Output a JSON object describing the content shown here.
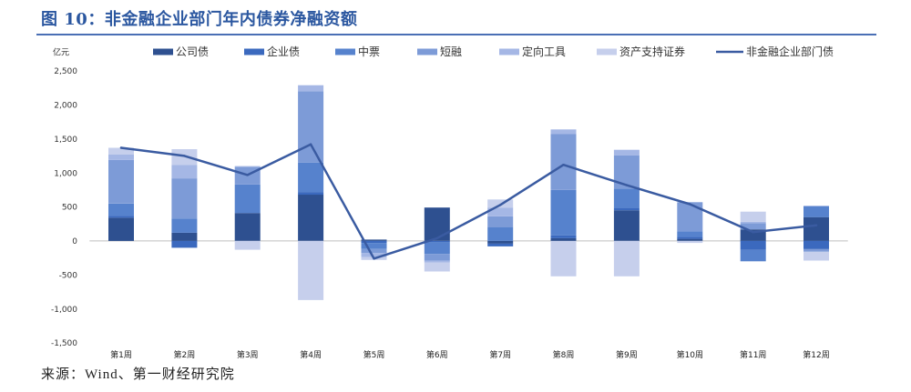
{
  "chart_data": {
    "type": "bar",
    "stacked": true,
    "title": "图 10：非金融企业部门年内债券净融资额",
    "xlabel": "",
    "ylabel": "亿元",
    "ylim": [
      -1500,
      2500
    ],
    "yticks": [
      2500,
      2000,
      1500,
      1000,
      500,
      0,
      -500,
      -1000,
      -1500
    ],
    "ytick_labels": [
      "2,500",
      "2,000",
      "1,500",
      "1,000",
      "500",
      "0",
      "-500",
      "-1,000",
      "-1,500"
    ],
    "grid": false,
    "legend_position": "top",
    "categories": [
      "第1周",
      "第2周",
      "第3周",
      "第4周",
      "第5周",
      "第6周",
      "第7周",
      "第8周",
      "第9周",
      "第10周",
      "第11周",
      "第12周"
    ],
    "series": [
      {
        "name": "公司债",
        "type": "bar",
        "color": "#2e5090",
        "values": [
          340,
          120,
          410,
          680,
          20,
          490,
          -40,
          40,
          450,
          30,
          170,
          350
        ]
      },
      {
        "name": "企业债",
        "type": "bar",
        "color": "#3b69be",
        "values": [
          30,
          -100,
          0,
          40,
          -30,
          -20,
          -40,
          40,
          30,
          30,
          -130,
          -120
        ]
      },
      {
        "name": "中票",
        "type": "bar",
        "color": "#5682cd",
        "values": [
          180,
          210,
          420,
          430,
          -90,
          -170,
          200,
          670,
          290,
          80,
          -170,
          160
        ]
      },
      {
        "name": "短融",
        "type": "bar",
        "color": "#7d9bd7",
        "values": [
          640,
          590,
          260,
          1050,
          -60,
          -100,
          160,
          820,
          490,
          430,
          90,
          -40
        ]
      },
      {
        "name": "定向工具",
        "type": "bar",
        "color": "#a5b7e5",
        "values": [
          80,
          200,
          10,
          90,
          -60,
          -30,
          130,
          70,
          80,
          0,
          20,
          10
        ]
      },
      {
        "name": "资产支持证券",
        "type": "bar",
        "color": "#c6cfec",
        "values": [
          100,
          230,
          -130,
          -870,
          -40,
          -130,
          120,
          -520,
          -520,
          -30,
          150,
          -130
        ]
      },
      {
        "name": "非金融企业部门债",
        "type": "line",
        "color": "#3a5ba1",
        "values": [
          1370,
          1250,
          970,
          1420,
          -260,
          40,
          530,
          1120,
          820,
          540,
          130,
          230
        ]
      }
    ]
  },
  "source_note": "来源：Wind、第一财经研究院"
}
